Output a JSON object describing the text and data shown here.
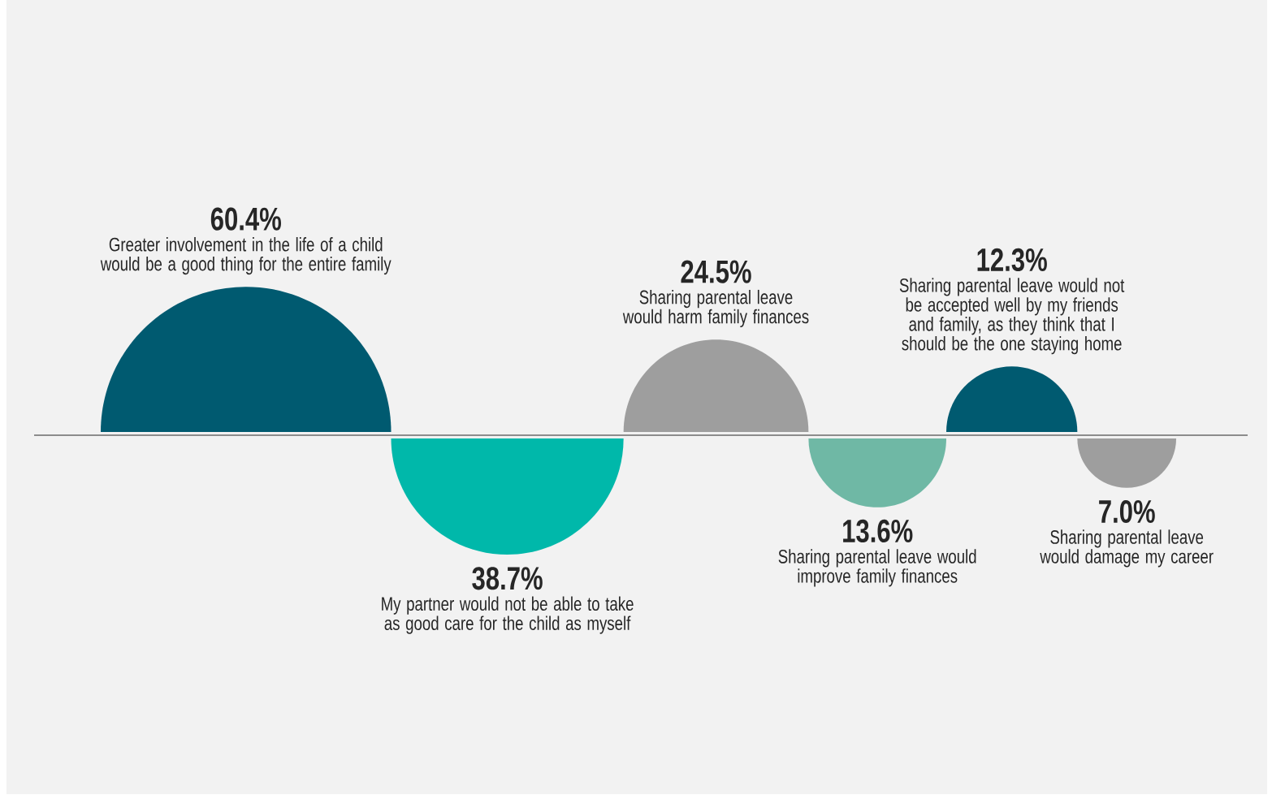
{
  "chart_data": {
    "type": "other",
    "categories": [
      "Greater involvement in the life of a child would be a good thing for the entire family",
      "My partner would not be able to take as good care for the child as myself",
      "Sharing parental leave would harm family finances",
      "Sharing parental leave would improve family finances",
      "Sharing parental leave would not be accepted well by my friends and family, as they think that I should be the one staying home",
      "Sharing parental leave would damage my career"
    ],
    "values": [
      60.4,
      38.7,
      24.5,
      13.6,
      12.3,
      7.0
    ],
    "value_labels": [
      "60.4%",
      "38.7%",
      "24.5%",
      "13.6%",
      "12.3%",
      "7.0%"
    ],
    "colors": [
      "#005a70",
      "#00b8aa",
      "#9e9e9e",
      "#6fb8a5",
      "#005a70",
      "#9e9e9e"
    ]
  }
}
